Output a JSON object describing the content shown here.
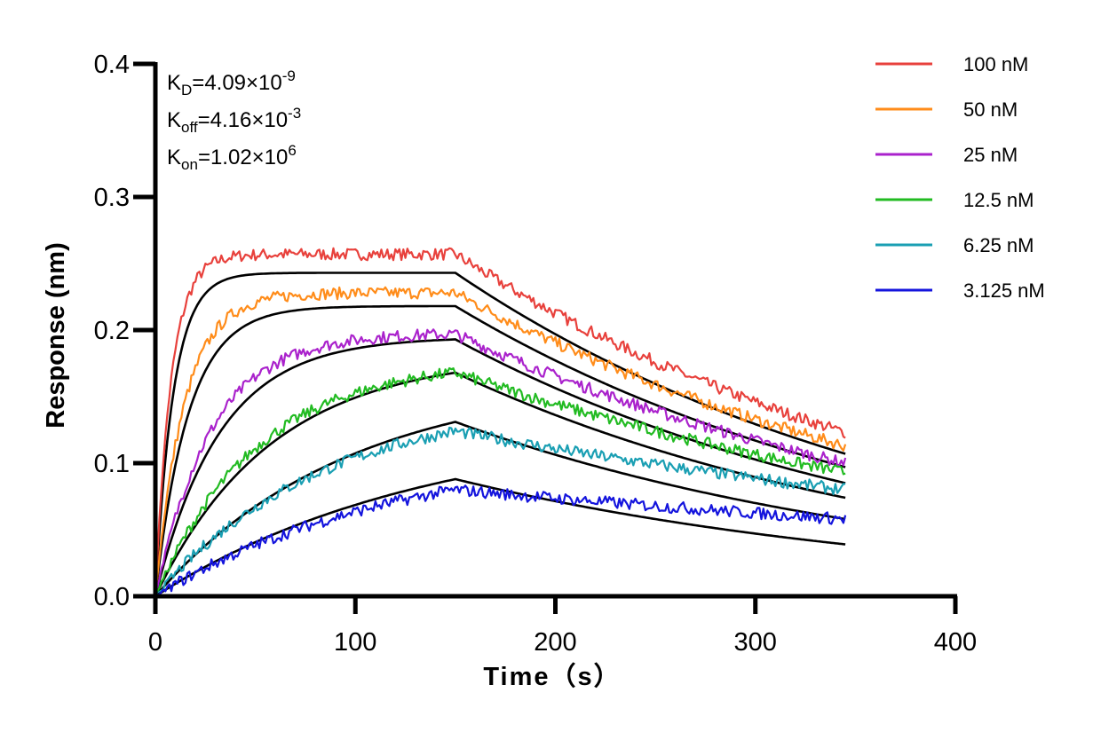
{
  "chart_data": {
    "type": "line",
    "title": "",
    "xlabel": "Time（s）",
    "ylabel": "Response (nm)",
    "xlim": [
      0,
      400
    ],
    "ylim": [
      0,
      0.4
    ],
    "x_ticks": [
      "0",
      "100",
      "200",
      "300",
      "400"
    ],
    "y_ticks": [
      "0.0",
      "0.1",
      "0.2",
      "0.3",
      "0.4"
    ],
    "x_tick_values": [
      0,
      100,
      200,
      300,
      400
    ],
    "y_tick_values": [
      0,
      0.1,
      0.2,
      0.3,
      0.4
    ],
    "association_end": 150,
    "time_end": 345,
    "annotations": {
      "kd": {
        "base": "K",
        "sub": "D",
        "value": "=4.09×10",
        "exp": "-9"
      },
      "koff": {
        "base": "K",
        "sub": "off",
        "value": "=4.16×10",
        "exp": "-3"
      },
      "kon": {
        "base": "K",
        "sub": "on",
        "value": "=1.02×10",
        "exp": "6"
      }
    },
    "legend_position": "top-right",
    "series": [
      {
        "name": "100 nM",
        "color": "#e8413c",
        "plateau": 0.257,
        "end_value": 0.123,
        "fit_start": 0.243,
        "fit_end": 0.107,
        "k_obs": 0.11
      },
      {
        "name": "50 nM",
        "color": "#ff8c1a",
        "plateau": 0.228,
        "end_value": 0.113,
        "fit_start": 0.218,
        "fit_end": 0.097,
        "k_obs": 0.06
      },
      {
        "name": "25 nM",
        "color": "#aa22cc",
        "plateau": 0.197,
        "end_value": 0.1,
        "fit_start": 0.193,
        "fit_end": 0.085,
        "k_obs": 0.031
      },
      {
        "name": "12.5 nM",
        "color": "#22bb22",
        "plateau": 0.168,
        "end_value": 0.093,
        "fit_start": 0.168,
        "fit_end": 0.074,
        "k_obs": 0.0172
      },
      {
        "name": "6.25 nM",
        "color": "#1a9fb3",
        "plateau": 0.124,
        "end_value": 0.08,
        "fit_start": 0.131,
        "fit_end": 0.058,
        "k_obs": 0.0105
      },
      {
        "name": "3.125 nM",
        "color": "#1414dd",
        "plateau": 0.08,
        "end_value": 0.058,
        "fit_start": 0.088,
        "fit_end": 0.039,
        "k_obs": 0.0074
      }
    ],
    "fit_color": "#000000"
  }
}
